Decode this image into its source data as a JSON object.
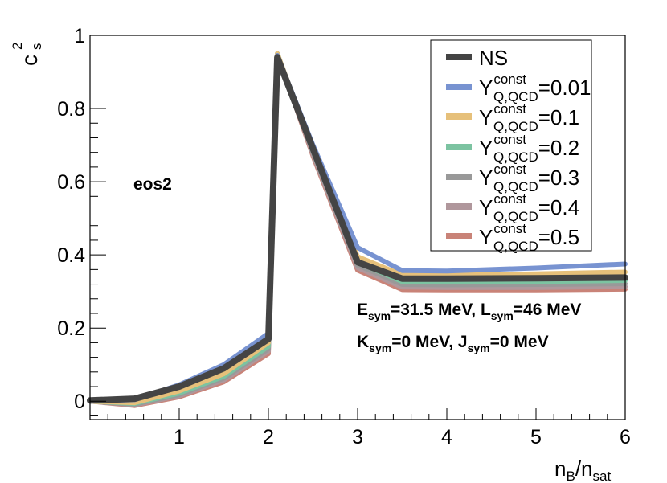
{
  "chart_data": {
    "type": "line",
    "xlabel": {
      "main": "n",
      "sub1": "B",
      "sep": "/n",
      "sub2": "sat"
    },
    "ylabel": {
      "main": "c",
      "sup": "2",
      "sub": "s"
    },
    "xlim": [
      0,
      6
    ],
    "ylim": [
      -0.05,
      1.0
    ],
    "xticks": [
      1,
      2,
      3,
      4,
      5,
      6
    ],
    "yticks": [
      0,
      0.2,
      0.4,
      0.6,
      0.8,
      1
    ],
    "annotations": {
      "eos": "eos2",
      "line1": {
        "e": "E",
        "e_sub": "sym",
        "e_val": "=31.5 MeV, ",
        "l": "L",
        "l_sub": "sym",
        "l_val": "=46 MeV"
      },
      "line2": {
        "k": "K",
        "k_sub": "sym",
        "k_val": "=0 MeV, ",
        "j": "J",
        "j_sub": "sym",
        "j_val": "=0 MeV"
      }
    },
    "legend_position": "top-right",
    "series": [
      {
        "name": "NS",
        "label_main": "NS",
        "color": "#444444",
        "x": [
          0,
          0.5,
          1,
          1.5,
          2,
          2.1,
          2.5,
          3,
          3.5,
          4,
          5,
          6
        ],
        "y": [
          0.002,
          0.007,
          0.04,
          0.09,
          0.17,
          0.94,
          0.69,
          0.38,
          0.335,
          0.335,
          0.336,
          0.338
        ]
      },
      {
        "name": "Y_Q,QCD^const=0.01",
        "label_main": "Y",
        "label_sup": "const",
        "label_sub": "Q,QCD",
        "label_val": "=0.01",
        "color": "#7893d1",
        "x": [
          0,
          0.5,
          1,
          1.5,
          2,
          2.1,
          2.5,
          3,
          3.5,
          4,
          5,
          6
        ],
        "y": [
          0.0,
          0.004,
          0.045,
          0.1,
          0.185,
          0.945,
          0.7,
          0.42,
          0.357,
          0.356,
          0.364,
          0.375
        ]
      },
      {
        "name": "Y_Q,QCD^const=0.1",
        "label_main": "Y",
        "label_sup": "const",
        "label_sub": "Q,QCD",
        "label_val": "=0.1",
        "color": "#e6c07a",
        "x": [
          0,
          0.5,
          1,
          1.5,
          2,
          2.1,
          2.5,
          3,
          3.5,
          4,
          5,
          6
        ],
        "y": [
          0.0,
          -0.004,
          0.028,
          0.075,
          0.16,
          0.95,
          0.69,
          0.395,
          0.345,
          0.345,
          0.348,
          0.353
        ]
      },
      {
        "name": "Y_Q,QCD^const=0.2",
        "label_main": "Y",
        "label_sup": "const",
        "label_sub": "Q,QCD",
        "label_val": "=0.2",
        "color": "#7cc3a1",
        "x": [
          0,
          0.5,
          1,
          1.5,
          2,
          2.1,
          2.5,
          3,
          3.5,
          4,
          5,
          6
        ],
        "y": [
          0.0,
          -0.006,
          0.022,
          0.068,
          0.15,
          0.95,
          0.685,
          0.38,
          0.327,
          0.326,
          0.327,
          0.33
        ]
      },
      {
        "name": "Y_Q,QCD^const=0.3",
        "label_main": "Y",
        "label_sup": "const",
        "label_sub": "Q,QCD",
        "label_val": "=0.3",
        "color": "#999999",
        "x": [
          0,
          0.5,
          1,
          1.5,
          2,
          2.1,
          2.5,
          3,
          3.5,
          4,
          5,
          6
        ],
        "y": [
          0.0,
          -0.008,
          0.018,
          0.063,
          0.143,
          0.95,
          0.68,
          0.372,
          0.319,
          0.318,
          0.319,
          0.321
        ]
      },
      {
        "name": "Y_Q,QCD^const=0.4",
        "label_main": "Y",
        "label_sup": "const",
        "label_sub": "Q,QCD",
        "label_val": "=0.4",
        "color": "#b0979c",
        "x": [
          0,
          0.5,
          1,
          1.5,
          2,
          2.1,
          2.5,
          3,
          3.5,
          4,
          5,
          6
        ],
        "y": [
          0.0,
          -0.01,
          0.015,
          0.058,
          0.137,
          0.95,
          0.675,
          0.365,
          0.312,
          0.311,
          0.311,
          0.313
        ]
      },
      {
        "name": "Y_Q,QCD^const=0.5",
        "label_main": "Y",
        "label_sup": "const",
        "label_sub": "Q,QCD",
        "label_val": "=0.5",
        "color": "#c98378",
        "x": [
          0,
          0.5,
          1,
          1.5,
          2,
          2.1,
          2.5,
          3,
          3.5,
          4,
          5,
          6
        ],
        "y": [
          0.0,
          -0.012,
          0.012,
          0.053,
          0.13,
          0.95,
          0.67,
          0.358,
          0.305,
          0.304,
          0.304,
          0.306
        ]
      }
    ]
  }
}
